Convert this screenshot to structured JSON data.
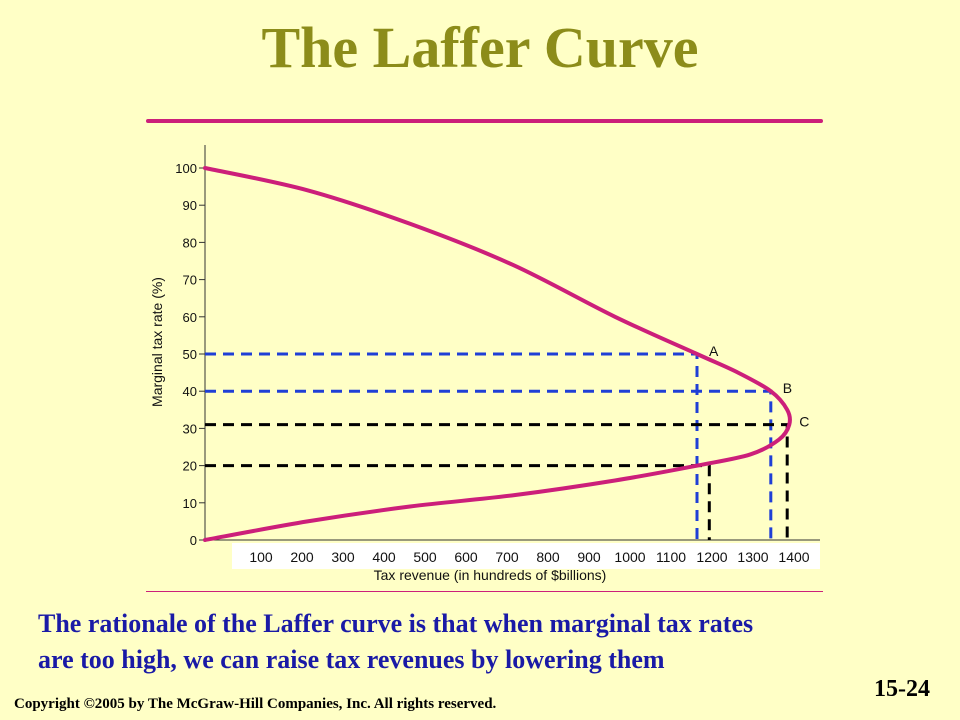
{
  "slide": {
    "title": "The Laffer Curve",
    "caption_line1": "The rationale of the Laffer curve is that when marginal tax rates",
    "caption_line2": "are too high, we can raise tax revenues by lowering them",
    "copyright": "Copyright ©2005 by The McGraw-Hill Companies, Inc.  All rights reserved.",
    "slide_number": "15-24"
  },
  "colors": {
    "background": "#ffffc6",
    "title": "#8c8c1a",
    "curve": "#cc1f7a",
    "caption": "#1a1aa6",
    "blue_guides": "#1f3fd6",
    "black_guides": "#000000"
  },
  "chart_data": {
    "type": "line",
    "xlabel": "Tax revenue (in hundreds of $billions)",
    "ylabel": "Marginal tax rate (%)",
    "xlim": [
      0,
      1500
    ],
    "ylim": [
      0,
      100
    ],
    "x_ticks": [
      "100",
      "200",
      "300",
      "400",
      "500",
      "600",
      "700",
      "800",
      "900",
      "1000",
      "1100",
      "1200",
      "1300",
      "1400"
    ],
    "y_ticks": [
      "0",
      "10",
      "20",
      "30",
      "40",
      "50",
      "60",
      "70",
      "80",
      "90",
      "100"
    ],
    "grid": false,
    "series": [
      {
        "points": [
          {
            "x": 0,
            "y": 100
          },
          {
            "x": 250,
            "y": 94
          },
          {
            "x": 500,
            "y": 85
          },
          {
            "x": 750,
            "y": 74
          },
          {
            "x": 1000,
            "y": 60
          },
          {
            "x": 1200,
            "y": 50
          },
          {
            "x": 1300,
            "y": 45
          },
          {
            "x": 1380,
            "y": 40
          },
          {
            "x": 1420,
            "y": 35
          },
          {
            "x": 1425,
            "y": 31
          },
          {
            "x": 1400,
            "y": 27
          },
          {
            "x": 1330,
            "y": 23
          },
          {
            "x": 1200,
            "y": 20
          },
          {
            "x": 1000,
            "y": 16
          },
          {
            "x": 750,
            "y": 12
          },
          {
            "x": 500,
            "y": 9
          },
          {
            "x": 250,
            "y": 5
          },
          {
            "x": 0,
            "y": 0
          }
        ]
      }
    ],
    "annotations": [
      {
        "label": "A",
        "x": 1200,
        "y": 50
      },
      {
        "label": "B",
        "x": 1380,
        "y": 40
      },
      {
        "label": "C",
        "x": 1420,
        "y": 31
      }
    ],
    "guides": [
      {
        "color": "blue",
        "x": 1200,
        "y": 50
      },
      {
        "color": "blue",
        "x": 1380,
        "y": 40
      },
      {
        "color": "black",
        "x": 1420,
        "y": 31
      },
      {
        "color": "black",
        "x": 1230,
        "y": 20
      }
    ]
  }
}
